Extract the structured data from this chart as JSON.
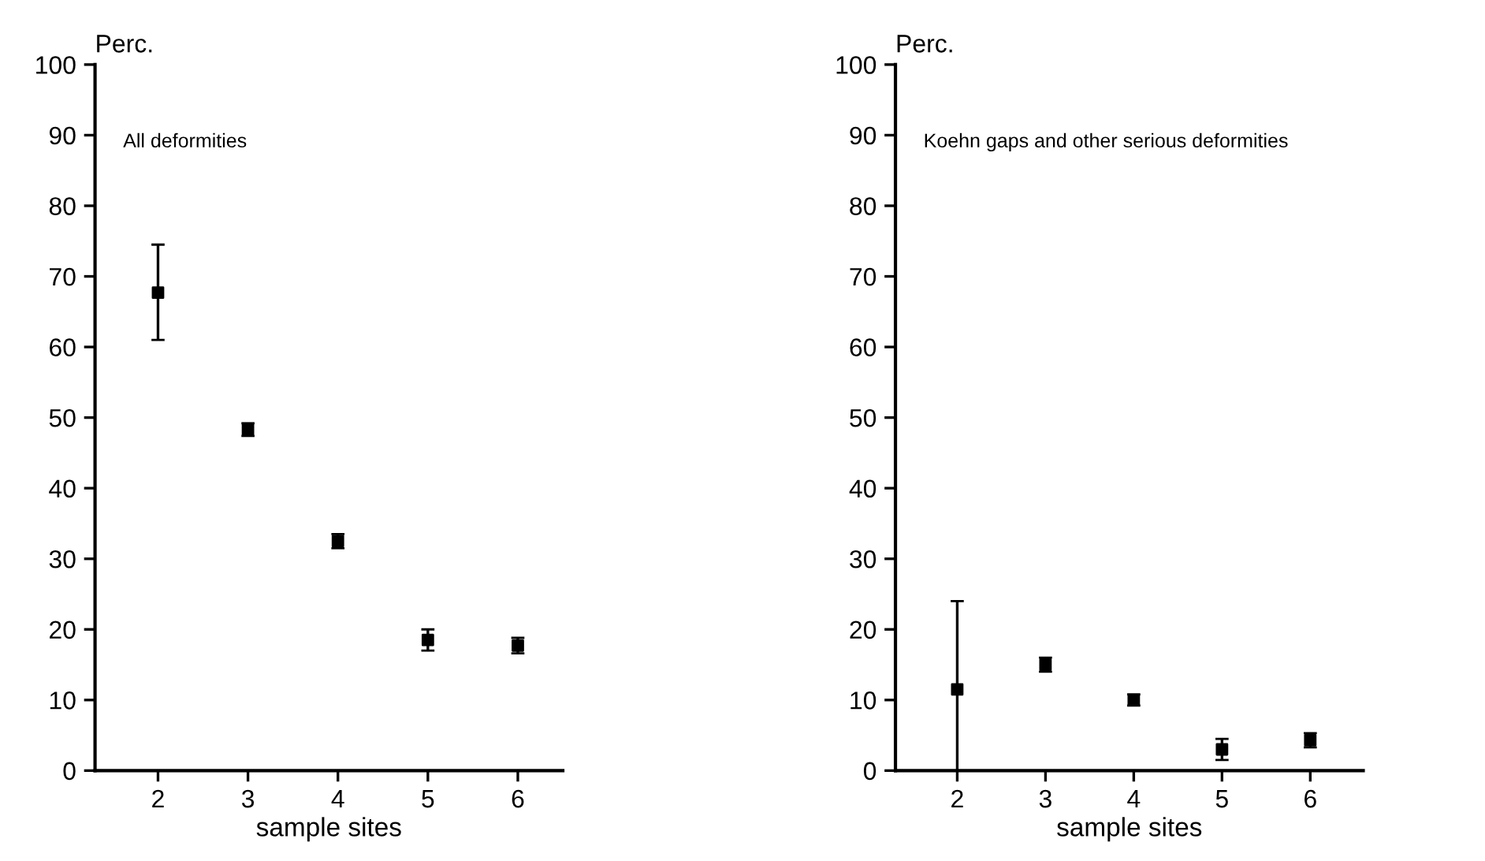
{
  "chart_data": [
    {
      "type": "scatter",
      "ylabel": "Perc.",
      "xlabel": "sample sites",
      "annotations": [
        "All deformities"
      ],
      "x": [
        2,
        3,
        4,
        5,
        6
      ],
      "series": [
        {
          "color": "#000000",
          "values": [
            67.7,
            48.3,
            32.5,
            18.5,
            17.7
          ],
          "errors": [
            [
              61,
              74.5
            ],
            [
              47.4,
              49.2
            ],
            [
              31.5,
              33.5
            ],
            [
              17,
              20
            ],
            [
              16.6,
              18.8
            ]
          ]
        }
      ],
      "xlim": [
        1.3,
        6.5
      ],
      "xticks": [
        2,
        3,
        4,
        5,
        6
      ],
      "ylim": [
        0,
        100
      ],
      "yticks": [
        0,
        10,
        20,
        30,
        40,
        50,
        60,
        70,
        80,
        90,
        100
      ],
      "marker": "square",
      "grid": false,
      "legend": false
    },
    {
      "type": "scatter",
      "ylabel": "Perc.",
      "xlabel": "sample sites",
      "annotations": [
        "Koehn gaps and other serious deformities"
      ],
      "x": [
        2,
        3,
        4,
        5,
        6
      ],
      "series": [
        {
          "color": "#000000",
          "values": [
            11.5,
            15,
            10,
            3,
            4.3
          ],
          "errors": [
            [
              0,
              24
            ],
            [
              14,
              16
            ],
            [
              9.2,
              10.8
            ],
            [
              1.5,
              4.5
            ],
            [
              3.3,
              5.3
            ]
          ]
        }
      ],
      "xlim": [
        1.3,
        6.6
      ],
      "xticks": [
        2,
        3,
        4,
        5,
        6
      ],
      "ylim": [
        0,
        100
      ],
      "yticks": [
        0,
        10,
        20,
        30,
        40,
        50,
        60,
        70,
        80,
        90,
        100
      ],
      "marker": "square",
      "grid": false,
      "legend": false
    }
  ]
}
